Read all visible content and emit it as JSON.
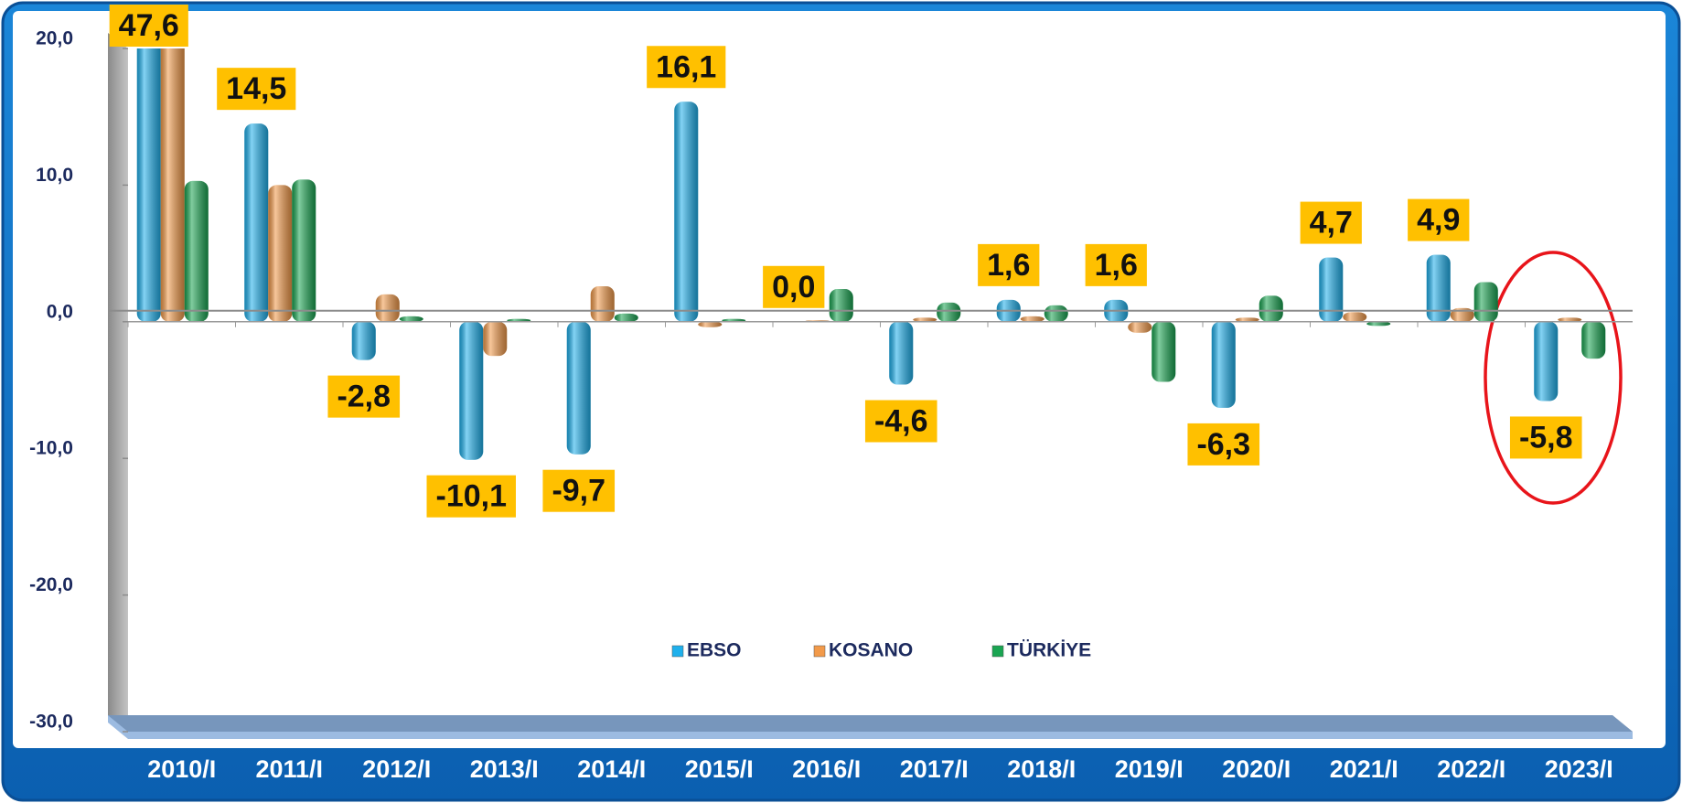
{
  "chart_data": {
    "type": "bar",
    "categories": [
      "2010/I",
      "2011/I",
      "2012/I",
      "2013/I",
      "2014/I",
      "2015/I",
      "2016/I",
      "2017/I",
      "2018/I",
      "2019/I",
      "2020/I",
      "2021/I",
      "2022/I",
      "2023/I"
    ],
    "series": [
      {
        "name": "EBSO",
        "color": "#1fb0ec",
        "values": [
          47.6,
          14.5,
          -2.8,
          -10.1,
          -9.7,
          16.1,
          0.0,
          -4.6,
          1.6,
          1.6,
          -6.3,
          4.7,
          4.9,
          -5.8
        ],
        "value_labels": [
          "47,6",
          "14,5",
          "-2,8",
          "-10,1",
          "-9,7",
          "16,1",
          "0,0",
          "-4,6",
          "1,6",
          "1,6",
          "-6,3",
          "4,7",
          "4,9",
          "-5,8"
        ]
      },
      {
        "name": "KOSANO",
        "color": "#f29a4a",
        "values": [
          25.0,
          10.0,
          2.0,
          -2.5,
          2.6,
          -0.4,
          0.1,
          0.3,
          0.4,
          -0.8,
          0.3,
          0.7,
          1.0,
          0.3
        ]
      },
      {
        "name": "TÜRKİYE",
        "color": "#1aa552",
        "values": [
          10.3,
          10.4,
          0.4,
          0.2,
          0.6,
          0.2,
          2.4,
          1.4,
          1.2,
          -4.4,
          1.9,
          -0.3,
          2.9,
          -2.7
        ]
      }
    ],
    "ylim": [
      -30,
      20
    ],
    "yticks": [
      {
        "value": -30,
        "label": "-30,0"
      },
      {
        "value": -20,
        "label": "-20,0"
      },
      {
        "value": -10,
        "label": "-10,0"
      },
      {
        "value": 0,
        "label": "0,0"
      },
      {
        "value": 10,
        "label": "10,0"
      },
      {
        "value": 20,
        "label": "20,0"
      }
    ],
    "legend": "bottom",
    "label_color": "#ffc000"
  }
}
